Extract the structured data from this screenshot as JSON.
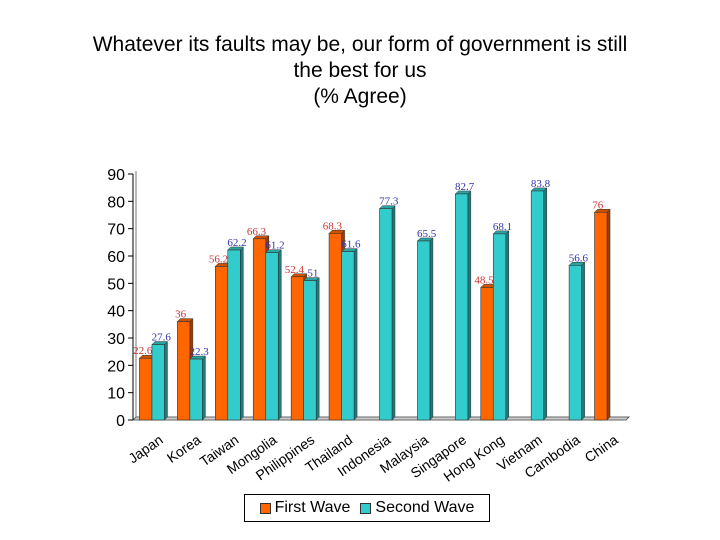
{
  "chart_data": {
    "type": "bar",
    "title": [
      "Whatever its faults may be, our form of government is still",
      "the best for us",
      "(% Agree)"
    ],
    "categories": [
      "Japan",
      "Korea",
      "Taiwan",
      "Mongolia",
      "Philippines",
      "Thailand",
      "Indonesia",
      "Malaysia",
      "Singapore",
      "Hong Kong",
      "Vietnam",
      "Cambodia",
      "China"
    ],
    "series": [
      {
        "name": "First Wave",
        "color": "#ff6600",
        "values": [
          22.6,
          36,
          56.2,
          66.3,
          52.4,
          68.3,
          null,
          null,
          null,
          48.5,
          null,
          null,
          76
        ],
        "labels": [
          "22.6",
          "36",
          "56.2",
          "66.3",
          "52.4",
          "68.3",
          "",
          "",
          "",
          "48.5",
          "",
          "",
          "76"
        ]
      },
      {
        "name": "Second Wave",
        "color": "#33cccc",
        "values": [
          27.6,
          22.3,
          62.2,
          61.2,
          51,
          61.6,
          77.3,
          65.5,
          82.7,
          68.1,
          83.8,
          56.6,
          null
        ],
        "labels": [
          "27.6",
          "22.3",
          "62.2",
          "61.2",
          "51",
          "61.6",
          "77.3",
          "65.5",
          "82.7",
          "68.1",
          "83.8",
          "56.6",
          ""
        ]
      }
    ],
    "ylim": [
      0,
      90
    ],
    "yticks": [
      0,
      10,
      20,
      30,
      40,
      50,
      60,
      70,
      80,
      90
    ],
    "grid": false,
    "legend": "bottom"
  }
}
